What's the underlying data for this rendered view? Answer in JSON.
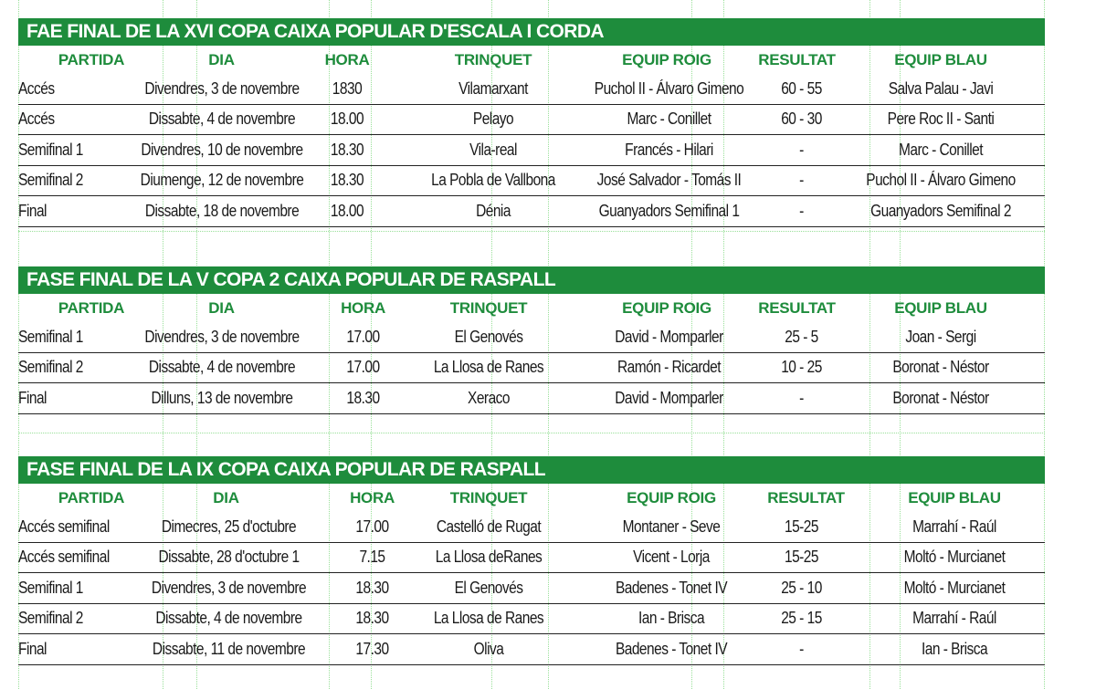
{
  "sections": [
    {
      "title": "FAE FINAL DE LA XVI COPA CAIXA POPULAR D'ESCALA I CORDA",
      "headers": [
        "PARTIDA",
        "DIA",
        "HORA",
        "TRINQUET",
        "EQUIP ROIG",
        "RESULTAT",
        "EQUIP BLAU"
      ],
      "rows": [
        [
          "Accés",
          "Divendres, 3 de novembre",
          "1830",
          "Vilamarxant",
          "Puchol II - Álvaro Gimeno",
          "60 - 55",
          "Salva Palau - Javi"
        ],
        [
          "Accés",
          "Dissabte, 4 de novembre",
          "18.00",
          "Pelayo",
          "Marc - Conillet",
          "60 - 30",
          "Pere Roc II - Santi"
        ],
        [
          "Semifinal 1",
          "Divendres, 10 de novembre",
          "18.30",
          "Vila-real",
          "Francés - Hilari",
          "-",
          "Marc - Conillet"
        ],
        [
          "Semifinal 2",
          "Diumenge, 12 de novembre",
          "18.30",
          "La Pobla de Vallbona",
          "José Salvador - Tomás II",
          "-",
          "Puchol II - Álvaro Gimeno"
        ],
        [
          "Final",
          "Dissabte, 18 de novembre",
          "18.00",
          "Dénia",
          "Guanyadors Semifinal 1",
          "-",
          "Guanyadors Semifinal 2"
        ]
      ]
    },
    {
      "title": "FASE FINAL DE LA V COPA 2 CAIXA POPULAR DE RASPALL",
      "headers": [
        "PARTIDA",
        "DIA",
        "HORA",
        "TRINQUET",
        "EQUIP ROIG",
        "RESULTAT",
        "EQUIP BLAU"
      ],
      "rows": [
        [
          "Semifinal 1",
          "Divendres, 3 de novembre",
          "17.00",
          "El Genovés",
          "David - Momparler",
          "25 - 5",
          "Joan - Sergi"
        ],
        [
          "Semifinal 2",
          "Dissabte, 4 de novembre",
          "17.00",
          "La Llosa de Ranes",
          "Ramón - Ricardet",
          "10 - 25",
          "Boronat - Néstor"
        ],
        [
          "Final",
          "Dilluns, 13 de novembre",
          "18.30",
          "Xeraco",
          "David - Momparler",
          "-",
          "Boronat - Néstor"
        ]
      ]
    },
    {
      "title": "FASE FINAL DE LA IX COPA CAIXA POPULAR DE RASPALL",
      "headers": [
        "PARTIDA",
        "DIA",
        "HORA",
        "TRINQUET",
        "EQUIP ROIG",
        "RESULTAT",
        "EQUIP BLAU"
      ],
      "rows": [
        [
          "Accés semifinal",
          "Dimecres, 25 d'octubre",
          "17.00",
          "Castelló de Rugat",
          "Montaner - Seve",
          "15-25",
          "Marrahí - Raúl"
        ],
        [
          "Accés semifinal",
          "Dissabte, 28 d'octubre 1",
          "7.15",
          "La Llosa deRanes",
          "Vicent - Lorja",
          "15-25",
          "Moltó - Murcianet"
        ],
        [
          "Semifinal 1",
          "Divendres, 3 de novembre",
          "18.30",
          "El Genovés",
          "Badenes - Tonet IV",
          "25 - 10",
          "Moltó - Murcianet"
        ],
        [
          "Semifinal 2",
          "Dissabte, 4 de novembre",
          "18.30",
          "La Llosa de Ranes",
          "Ian - Brisca",
          "25 - 15",
          "Marrahí - Raúl"
        ],
        [
          "Final",
          "Dissabte, 11 de novembre",
          "17.30",
          "Oliva",
          "Badenes - Tonet IV",
          "-",
          "Ian - Brisca"
        ]
      ]
    }
  ],
  "colors": {
    "accent": "#1e8c3c",
    "guide": "#6fd36f"
  }
}
